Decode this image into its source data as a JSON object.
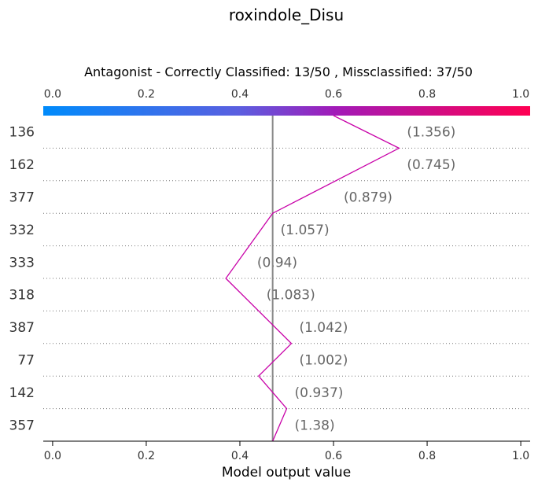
{
  "chart_data": {
    "type": "line",
    "title": "roxindole_Disu",
    "subtitle": "Antagonist - Correctly Classified: 13/50 , Missclassified: 37/50",
    "xlabel": "Model output value",
    "xlim": [
      -0.02,
      1.02
    ],
    "xticks": [
      "0.0",
      "0.2",
      "0.4",
      "0.6",
      "0.8",
      "1.0"
    ],
    "base_value": 0.47,
    "colorbar": {
      "from": "#008bfb",
      "to": "#ff0052"
    },
    "line_color": "#c800a8",
    "grid": "dotted horizontal",
    "rows": [
      {
        "label": "136",
        "annotation": "(1.356)"
      },
      {
        "label": "162",
        "annotation": "(0.745)"
      },
      {
        "label": "377",
        "annotation": "(0.879)"
      },
      {
        "label": "332",
        "annotation": "(1.057)"
      },
      {
        "label": "333",
        "annotation": "(0.94)"
      },
      {
        "label": "318",
        "annotation": "(1.083)"
      },
      {
        "label": "387",
        "annotation": "(1.042)"
      },
      {
        "label": "77",
        "annotation": "(1.002)"
      },
      {
        "label": "142",
        "annotation": "(0.937)"
      },
      {
        "label": "357",
        "annotation": "(1.38)"
      }
    ],
    "path": {
      "points": [
        {
          "x": 0.6,
          "y": 0
        },
        {
          "x": 0.74,
          "y": 1
        },
        {
          "x": 0.47,
          "y": 3
        },
        {
          "x": 0.37,
          "y": 5
        },
        {
          "x": 0.51,
          "y": 7
        },
        {
          "x": 0.44,
          "y": 8
        },
        {
          "x": 0.5,
          "y": 9
        },
        {
          "x": 0.47,
          "y": 10
        }
      ]
    }
  }
}
